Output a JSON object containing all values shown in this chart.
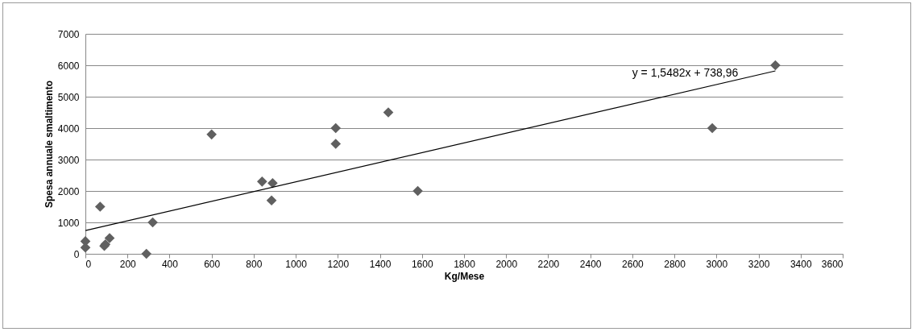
{
  "chart_data": {
    "type": "scatter",
    "xlabel": "Kg/Mese",
    "ylabel": "Spesa annuale smaltimento",
    "xlim": [
      0,
      3600
    ],
    "xticks": [
      0,
      200,
      400,
      600,
      800,
      1000,
      1200,
      1400,
      1600,
      1800,
      2000,
      2200,
      2400,
      2600,
      2800,
      3000,
      3200,
      3400,
      3600
    ],
    "ylim": [
      0,
      7000
    ],
    "yticks": [
      0,
      1000,
      2000,
      3000,
      4000,
      5000,
      6000,
      7000
    ],
    "grid": "y",
    "marker": "diamond",
    "series": [
      {
        "color": "#606060",
        "x": [
          0,
          0,
          70,
          90,
          95,
          115,
          290,
          320,
          600,
          840,
          885,
          890,
          1190,
          1190,
          1440,
          1580,
          2980,
          3280
        ],
        "values": [
          400,
          200,
          1500,
          250,
          300,
          500,
          0,
          1000,
          3800,
          2300,
          1700,
          2250,
          4000,
          3500,
          4500,
          2000,
          4000,
          6000
        ]
      },
      {
        "type": "line",
        "color": "#000000",
        "line_style": "solid",
        "marker": "none",
        "x": [
          0,
          3280
        ],
        "values": [
          740,
          5820
        ]
      }
    ],
    "annotations": [
      "y = 1,5482x + 738,96"
    ]
  }
}
